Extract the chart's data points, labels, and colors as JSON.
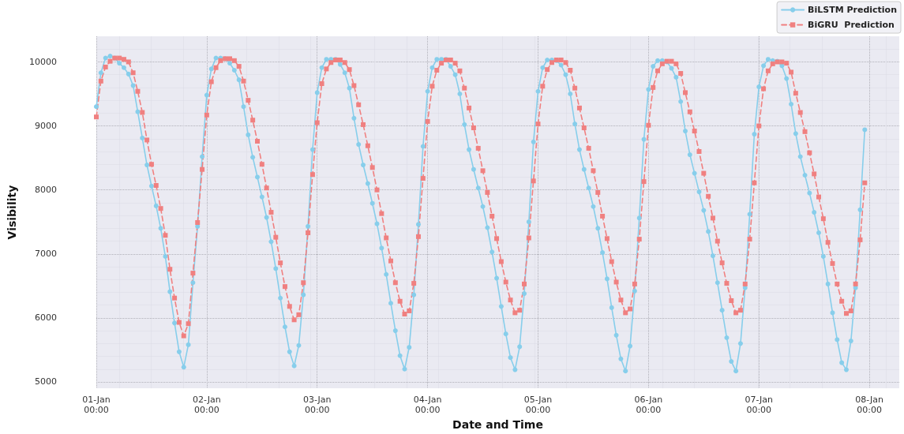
{
  "chart_data": {
    "type": "line",
    "xlabel": "Date and Time",
    "ylabel": "Visibility",
    "x": [
      "--01-01T00:00",
      "--01-01T01:00",
      "--01-01T02:00",
      "--01-01T03:00",
      "--01-01T04:00",
      "--01-01T05:00",
      "--01-01T06:00",
      "--01-01T07:00",
      "--01-01T08:00",
      "--01-01T09:00",
      "--01-01T10:00",
      "--01-01T11:00",
      "--01-01T12:00",
      "--01-01T13:00",
      "--01-01T14:00",
      "--01-01T15:00",
      "--01-01T16:00",
      "--01-01T17:00",
      "--01-01T18:00",
      "--01-01T19:00",
      "--01-01T20:00",
      "--01-01T21:00",
      "--01-01T22:00",
      "--01-01T23:00",
      "--01-02T00:00",
      "--01-02T01:00",
      "--01-02T02:00",
      "--01-02T03:00",
      "--01-02T04:00",
      "--01-02T05:00",
      "--01-02T06:00",
      "--01-02T07:00",
      "--01-02T08:00",
      "--01-02T09:00",
      "--01-02T10:00",
      "--01-02T11:00",
      "--01-02T12:00",
      "--01-02T13:00",
      "--01-02T14:00",
      "--01-02T15:00",
      "--01-02T16:00",
      "--01-02T17:00",
      "--01-02T18:00",
      "--01-02T19:00",
      "--01-02T20:00",
      "--01-02T21:00",
      "--01-02T22:00",
      "--01-02T23:00",
      "--01-03T00:00",
      "--01-03T01:00",
      "--01-03T02:00",
      "--01-03T03:00",
      "--01-03T04:00",
      "--01-03T05:00",
      "--01-03T06:00",
      "--01-03T07:00",
      "--01-03T08:00",
      "--01-03T09:00",
      "--01-03T10:00",
      "--01-03T11:00",
      "--01-03T12:00",
      "--01-03T13:00",
      "--01-03T14:00",
      "--01-03T15:00",
      "--01-03T16:00",
      "--01-03T17:00",
      "--01-03T18:00",
      "--01-03T19:00",
      "--01-03T20:00",
      "--01-03T21:00",
      "--01-03T22:00",
      "--01-03T23:00",
      "--01-04T00:00",
      "--01-04T01:00",
      "--01-04T02:00",
      "--01-04T03:00",
      "--01-04T04:00",
      "--01-04T05:00",
      "--01-04T06:00",
      "--01-04T07:00",
      "--01-04T08:00",
      "--01-04T09:00",
      "--01-04T10:00",
      "--01-04T11:00",
      "--01-04T12:00",
      "--01-04T13:00",
      "--01-04T14:00",
      "--01-04T15:00",
      "--01-04T16:00",
      "--01-04T17:00",
      "--01-04T18:00",
      "--01-04T19:00",
      "--01-04T20:00",
      "--01-04T21:00",
      "--01-04T22:00",
      "--01-04T23:00",
      "--01-05T00:00",
      "--01-05T01:00",
      "--01-05T02:00",
      "--01-05T03:00",
      "--01-05T04:00",
      "--01-05T05:00",
      "--01-05T06:00",
      "--01-05T07:00",
      "--01-05T08:00",
      "--01-05T09:00",
      "--01-05T10:00",
      "--01-05T11:00",
      "--01-05T12:00",
      "--01-05T13:00",
      "--01-05T14:00",
      "--01-05T15:00",
      "--01-05T16:00",
      "--01-05T17:00",
      "--01-05T18:00",
      "--01-05T19:00",
      "--01-05T20:00",
      "--01-05T21:00",
      "--01-05T22:00",
      "--01-05T23:00",
      "--01-06T00:00",
      "--01-06T01:00",
      "--01-06T02:00",
      "--01-06T03:00",
      "--01-06T04:00",
      "--01-06T05:00",
      "--01-06T06:00",
      "--01-06T07:00",
      "--01-06T08:00",
      "--01-06T09:00",
      "--01-06T10:00",
      "--01-06T11:00",
      "--01-06T12:00",
      "--01-06T13:00",
      "--01-06T14:00",
      "--01-06T15:00",
      "--01-06T16:00",
      "--01-06T17:00",
      "--01-06T18:00",
      "--01-06T19:00",
      "--01-06T20:00",
      "--01-06T21:00",
      "--01-06T22:00",
      "--01-06T23:00",
      "--01-07T00:00",
      "--01-07T01:00",
      "--01-07T02:00",
      "--01-07T03:00",
      "--01-07T04:00",
      "--01-07T05:00",
      "--01-07T06:00",
      "--01-07T07:00",
      "--01-07T08:00",
      "--01-07T09:00",
      "--01-07T10:00",
      "--01-07T11:00",
      "--01-07T12:00",
      "--01-07T13:00",
      "--01-07T14:00",
      "--01-07T15:00",
      "--01-07T16:00",
      "--01-07T17:00",
      "--01-07T18:00",
      "--01-07T19:00",
      "--01-07T20:00",
      "--01-07T21:00",
      "--01-07T22:00",
      "--01-07T23:00"
    ],
    "series": [
      {
        "name": "BiLSTM Prediction",
        "color": "#87ceeb",
        "marker": "circle",
        "line_style": "solid",
        "values": [
          9300,
          9830,
          10060,
          10090,
          10060,
          9980,
          9910,
          9810,
          9630,
          9220,
          8810,
          8390,
          8060,
          7750,
          7400,
          6960,
          6410,
          5920,
          5470,
          5230,
          5580,
          6550,
          7430,
          8520,
          9480,
          9890,
          10060,
          10060,
          10050,
          9980,
          9870,
          9720,
          9300,
          8860,
          8510,
          8200,
          7890,
          7570,
          7190,
          6770,
          6310,
          5860,
          5470,
          5250,
          5570,
          6360,
          7430,
          8630,
          9520,
          9910,
          10040,
          10040,
          10040,
          9960,
          9830,
          9590,
          9120,
          8710,
          8390,
          8100,
          7790,
          7470,
          7090,
          6680,
          6230,
          5800,
          5410,
          5200,
          5540,
          6360,
          7460,
          8680,
          9540,
          9910,
          10040,
          10040,
          10040,
          9930,
          9800,
          9500,
          9020,
          8630,
          8320,
          8030,
          7740,
          7410,
          7030,
          6620,
          6180,
          5750,
          5380,
          5190,
          5550,
          6380,
          7500,
          8750,
          9540,
          9910,
          10030,
          10030,
          10020,
          9950,
          9800,
          9500,
          9030,
          8630,
          8320,
          8030,
          7740,
          7400,
          7020,
          6610,
          6160,
          5730,
          5360,
          5170,
          5560,
          6420,
          7560,
          8790,
          9570,
          9930,
          10020,
          10020,
          10000,
          9900,
          9760,
          9380,
          8920,
          8550,
          8260,
          7970,
          7680,
          7350,
          6970,
          6550,
          6120,
          5690,
          5320,
          5170,
          5600,
          6470,
          7620,
          8870,
          9610,
          9940,
          10040,
          10020,
          10010,
          9940,
          9740,
          9340,
          8880,
          8520,
          8230,
          7950,
          7650,
          7330,
          6960,
          6530,
          6080,
          5660,
          5300,
          5190,
          5640,
          6470,
          7690,
          8940
        ]
      },
      {
        "name": "BiGRU  Prediction",
        "color": "#f08080",
        "marker": "square",
        "line_style": "dashed",
        "values": [
          9140,
          9700,
          9920,
          10010,
          10060,
          10060,
          10040,
          10000,
          9830,
          9540,
          9210,
          8780,
          8400,
          8070,
          7710,
          7290,
          6760,
          6310,
          5930,
          5720,
          5910,
          6700,
          7490,
          8320,
          9170,
          9690,
          9910,
          10020,
          10050,
          10050,
          10020,
          9930,
          9700,
          9400,
          9090,
          8760,
          8400,
          8030,
          7650,
          7260,
          6860,
          6490,
          6180,
          5970,
          6050,
          6550,
          7330,
          8240,
          9050,
          9660,
          9890,
          9990,
          10030,
          10030,
          9990,
          9880,
          9630,
          9330,
          9020,
          8690,
          8350,
          8000,
          7630,
          7250,
          6890,
          6550,
          6260,
          6060,
          6110,
          6540,
          7270,
          8180,
          9070,
          9620,
          9870,
          9980,
          10030,
          10030,
          9980,
          9860,
          9590,
          9280,
          8970,
          8650,
          8300,
          7960,
          7590,
          7240,
          6880,
          6560,
          6280,
          6080,
          6120,
          6530,
          7250,
          8140,
          9030,
          9620,
          9880,
          9990,
          10030,
          10030,
          9990,
          9870,
          9590,
          9280,
          8970,
          8650,
          8300,
          7960,
          7590,
          7240,
          6880,
          6560,
          6280,
          6080,
          6140,
          6530,
          7230,
          8130,
          9010,
          9600,
          9860,
          9970,
          10010,
          10010,
          9970,
          9820,
          9520,
          9220,
          8920,
          8600,
          8260,
          7900,
          7560,
          7200,
          6860,
          6540,
          6270,
          6080,
          6120,
          6530,
          7230,
          8110,
          9000,
          9580,
          9860,
          9970,
          10000,
          10000,
          9980,
          9840,
          9510,
          9210,
          8910,
          8580,
          8250,
          7890,
          7550,
          7180,
          6850,
          6530,
          6260,
          6070,
          6110,
          6530,
          7220,
          8110
        ]
      }
    ],
    "xlim": [
      "--01-01T00:00",
      "--01-08T06:30"
    ],
    "xticks": [
      {
        "value": "--01-01T00:00",
        "label": "01-Jan\n00:00"
      },
      {
        "value": "--01-02T00:00",
        "label": "02-Jan\n00:00"
      },
      {
        "value": "--01-03T00:00",
        "label": "03-Jan\n00:00"
      },
      {
        "value": "--01-04T00:00",
        "label": "04-Jan\n00:00"
      },
      {
        "value": "--01-05T00:00",
        "label": "05-Jan\n00:00"
      },
      {
        "value": "--01-06T00:00",
        "label": "06-Jan\n00:00"
      },
      {
        "value": "--01-07T00:00",
        "label": "07-Jan\n00:00"
      },
      {
        "value": "--01-08T00:00",
        "label": "08-Jan\n00:00"
      }
    ],
    "ylim": [
      4900,
      10400
    ],
    "yticks": [
      5000,
      6000,
      7000,
      8000,
      9000,
      10000
    ],
    "grid": true,
    "legend": "top right"
  }
}
